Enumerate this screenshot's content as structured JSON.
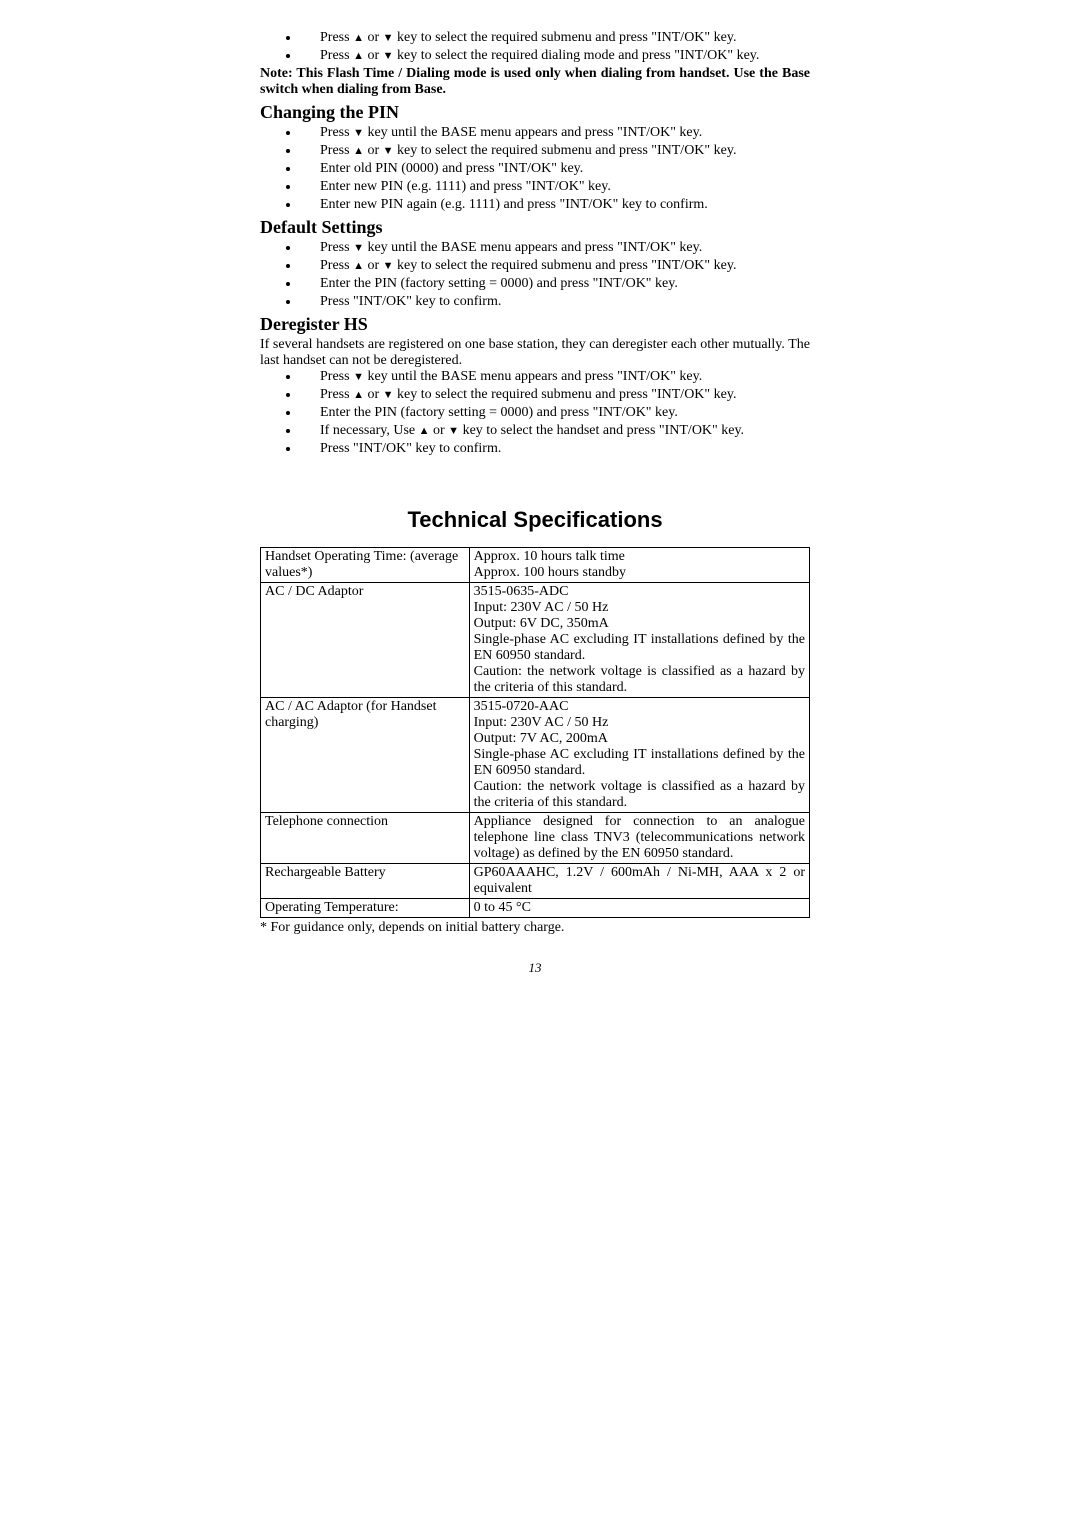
{
  "intro": {
    "b1a": "Press ",
    "b1b": " or ",
    "b1c": " key to select the required submenu and press \"INT/OK\" key.",
    "b2a": "Press ",
    "b2b": " or ",
    "b2c": " key to select the required dialing mode and press \"INT/OK\" key.",
    "note": "Note: This Flash Time / Dialing mode is used only when dialing from handset.    Use the Base switch when dialing from Base."
  },
  "changingPin": {
    "title": "Changing the PIN",
    "b1a": "Press ",
    "b1b": " key until the BASE menu appears and press \"INT/OK\" key.",
    "b2a": "Press ",
    "b2b": " or ",
    "b2c": " key to select the required submenu and press \"INT/OK\" key.",
    "b3": "Enter old PIN (0000) and press \"INT/OK\" key.",
    "b4": "Enter new PIN (e.g. 1111) and press \"INT/OK\" key.",
    "b5": "Enter new PIN again (e.g. 1111) and press \"INT/OK\" key to confirm."
  },
  "defaults": {
    "title": "Default Settings",
    "b1a": "Press ",
    "b1b": " key until the BASE menu appears and press \"INT/OK\" key.",
    "b2a": "Press ",
    "b2b": " or ",
    "b2c": " key to select the required submenu and press \"INT/OK\" key.",
    "b3": "Enter the PIN (factory setting = 0000) and press \"INT/OK\" key.",
    "b4": "Press \"INT/OK\" key to confirm."
  },
  "dereg": {
    "title": "Deregister HS",
    "intro": "If several handsets are registered on one base station, they can deregister each other mutually. The last handset can not be deregistered.",
    "b1a": "Press ",
    "b1b": " key until the BASE menu appears and press \"INT/OK\" key.",
    "b2a": "Press ",
    "b2b": " or ",
    "b2c": " key to select the required submenu and press \"INT/OK\" key.",
    "b3": "Enter the PIN (factory setting = 0000) and press \"INT/OK\" key.",
    "b4a": "If necessary, Use ",
    "b4b": " or ",
    "b4c": " key to select the handset and press \"INT/OK\" key.",
    "b5": "Press \"INT/OK\" key to confirm."
  },
  "spec": {
    "title": "Technical Specifications",
    "rows": [
      [
        "Handset Operating Time: (average values*)",
        "Approx. 10 hours talk time\nApprox. 100 hours standby"
      ],
      [
        "AC / DC Adaptor",
        "3515-0635-ADC\nInput: 230V AC / 50 Hz\nOutput: 6V DC, 350mA\nSingle-phase AC excluding IT installations defined by the EN 60950 standard.\nCaution: the network voltage is classified as a hazard by the criteria of this standard."
      ],
      [
        "AC / AC Adaptor (for Handset charging)",
        "3515-0720-AAC\nInput: 230V AC / 50 Hz\nOutput: 7V AC, 200mA\nSingle-phase AC excluding IT installations defined by the EN 60950 standard.\nCaution: the network voltage is classified as a hazard by the criteria of this standard."
      ],
      [
        "Telephone connection",
        "Appliance designed for connection to an analogue telephone line class TNV3 (telecommunications network voltage) as defined by the EN 60950 standard."
      ],
      [
        "Rechargeable Battery",
        "GP60AAAHC, 1.2V / 600mAh / Ni-MH, AAA x 2 or equivalent"
      ],
      [
        "Operating Temperature:",
        "0 to 45 °C"
      ]
    ],
    "footnote": "* For guidance only, depends on initial battery charge."
  },
  "pagenum": "13"
}
